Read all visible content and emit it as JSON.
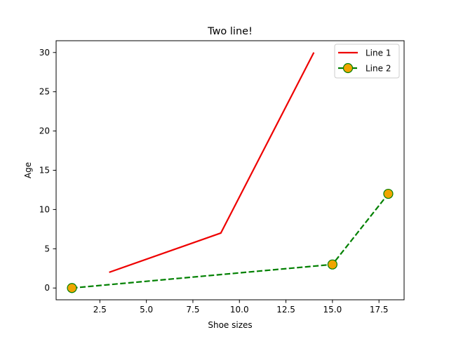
{
  "chart_data": {
    "type": "line",
    "title": "Two line!",
    "xlabel": "Shoe sizes",
    "ylabel": "Age",
    "xlim": [
      0.15,
      18.85
    ],
    "ylim": [
      -1.5,
      31.5
    ],
    "xticks": [
      2.5,
      5.0,
      7.5,
      10.0,
      12.5,
      15.0,
      17.5
    ],
    "xtick_labels": [
      "2.5",
      "5.0",
      "7.5",
      "10.0",
      "12.5",
      "15.0",
      "17.5"
    ],
    "yticks": [
      0,
      5,
      10,
      15,
      20,
      25,
      30
    ],
    "ytick_labels": [
      "0",
      "5",
      "10",
      "15",
      "20",
      "25",
      "30"
    ],
    "grid": false,
    "legend_position": "top-right",
    "series": [
      {
        "name": "Line 1",
        "x": [
          3,
          9,
          14
        ],
        "y": [
          2,
          7,
          30
        ],
        "color": "#ee0000",
        "linestyle": "solid",
        "marker": "none"
      },
      {
        "name": "Line 2",
        "x": [
          1,
          15,
          18
        ],
        "y": [
          0,
          3,
          12
        ],
        "color": "#008000",
        "linestyle": "dashed",
        "marker": "circle",
        "marker_face_color": "#f0a500",
        "marker_edge_color": "#008000"
      }
    ]
  }
}
